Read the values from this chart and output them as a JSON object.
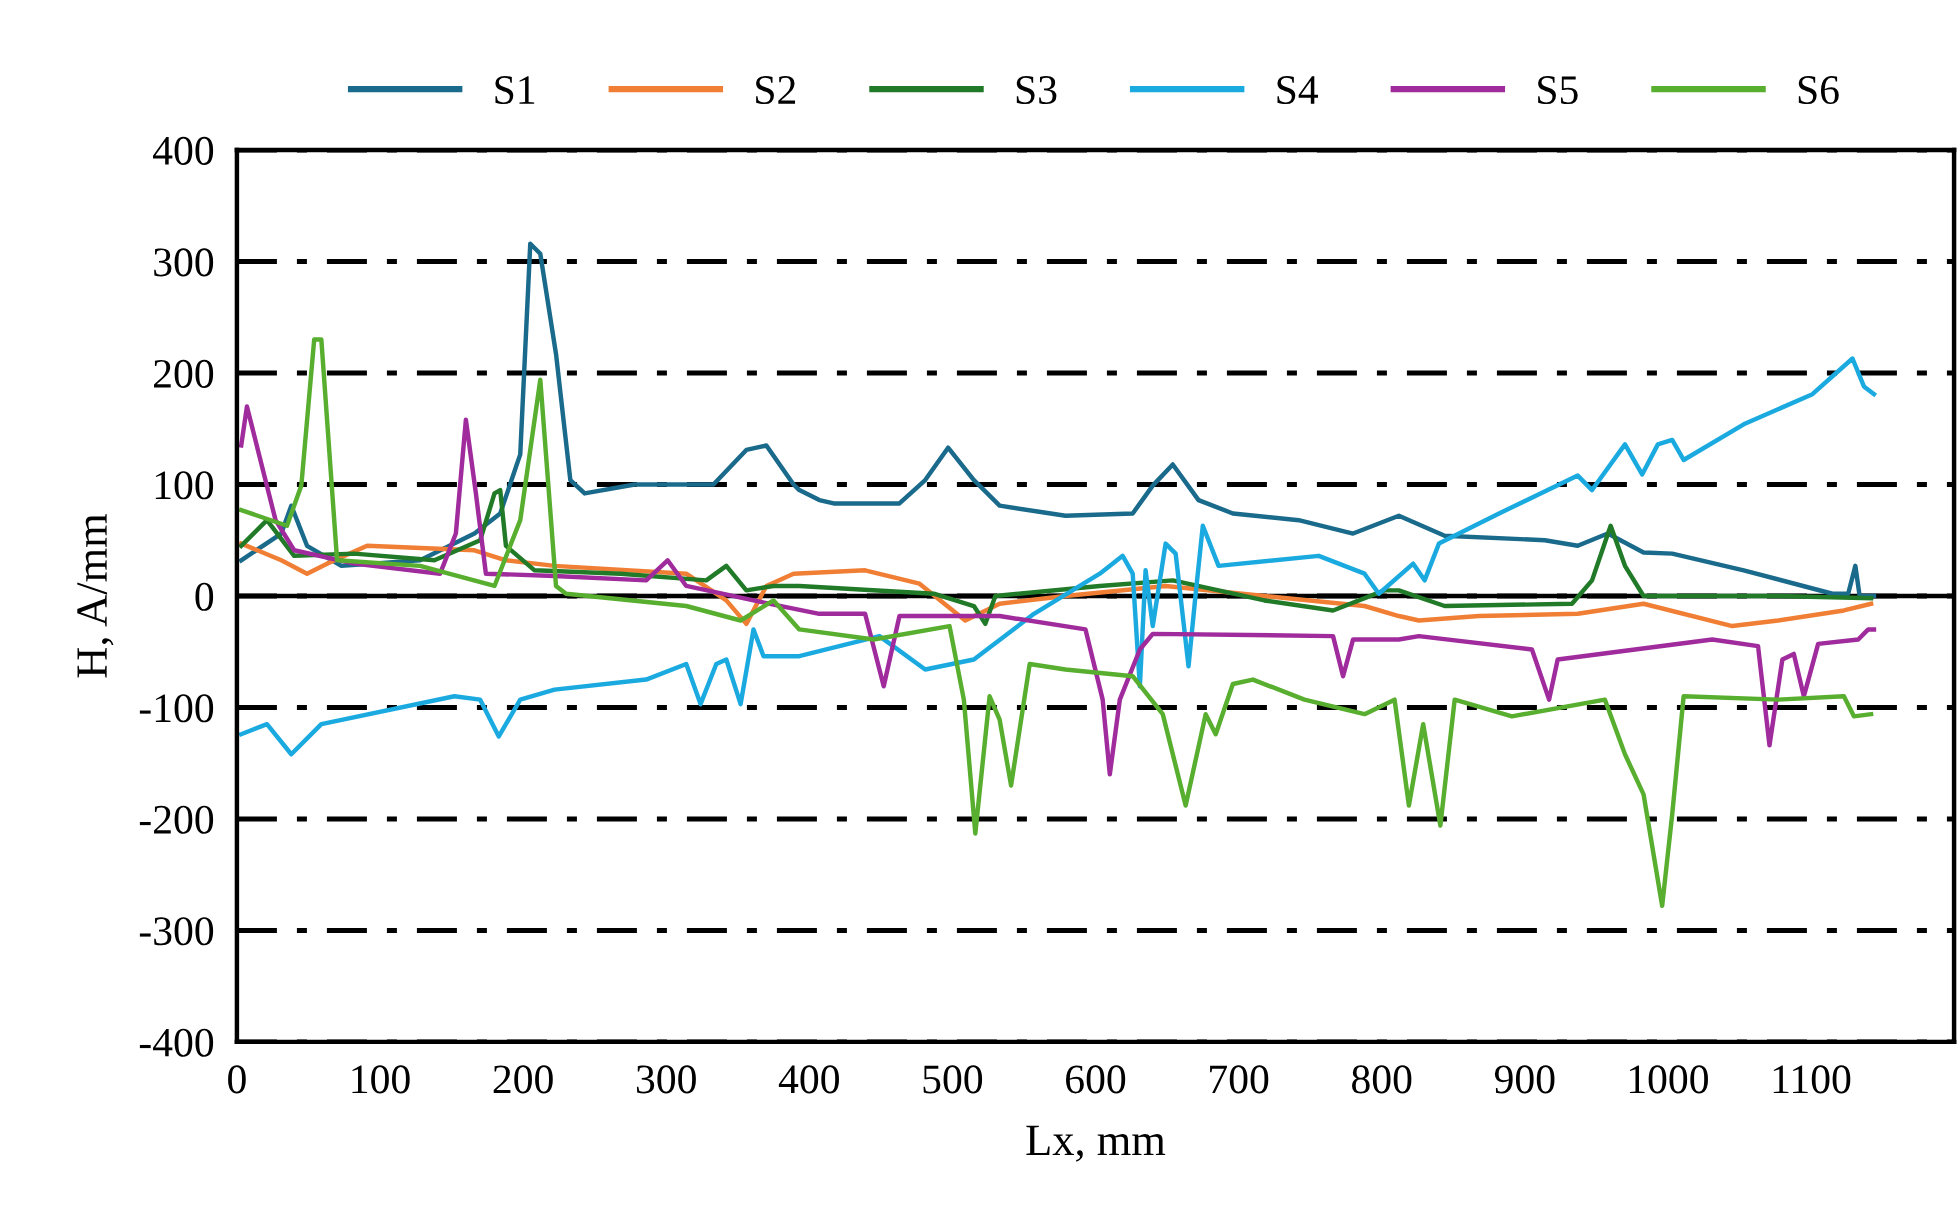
{
  "chart_data": {
    "type": "line",
    "xlabel": "Lx, mm",
    "ylabel": "H, A/mm",
    "xlim": [
      0,
      1200
    ],
    "xticks": [
      0,
      100,
      200,
      300,
      400,
      500,
      600,
      700,
      800,
      900,
      1000,
      1100
    ],
    "ylim": [
      -400,
      400
    ],
    "yticks": [
      -400,
      -300,
      -200,
      -100,
      0,
      100,
      200,
      300,
      400
    ],
    "grid": "y",
    "legend": "top",
    "marker": "none",
    "line_style": "solid",
    "ref_lines": [
      {
        "axis": "y",
        "value": 0,
        "color": "#000000"
      }
    ],
    "series": [
      {
        "name": "S1",
        "color": "#1a6a8c",
        "x": [
          3,
          31,
          38,
          49,
          73,
          128,
          166,
          184,
          198,
          205,
          212,
          223,
          233,
          243,
          278,
          333,
          356,
          370,
          389,
          393,
          407,
          417,
          463,
          481,
          497,
          515,
          533,
          579,
          626,
          640,
          654,
          672,
          696,
          742,
          780,
          812,
          844,
          914,
          937,
          958,
          983,
          1003,
          1053,
          1115,
          1126,
          1131,
          1134,
          1144
        ],
        "values": [
          32,
          56,
          81,
          45,
          27,
          32,
          56,
          74,
          127,
          316,
          307,
          217,
          104,
          92,
          100,
          100,
          131,
          135,
          100,
          95,
          86,
          83,
          83,
          104,
          133,
          104,
          81,
          72,
          74,
          99,
          118,
          86,
          74,
          68,
          56,
          72,
          54,
          50,
          45,
          56,
          39,
          38,
          23,
          2,
          2,
          27,
          0,
          0
        ]
      },
      {
        "name": "S2",
        "color": "#f07f35",
        "x": [
          3,
          31,
          49,
          63,
          91,
          166,
          188,
          222,
          314,
          342,
          356,
          370,
          389,
          439,
          477,
          509,
          533,
          579,
          649,
          718,
          788,
          812,
          826,
          868,
          937,
          983,
          1045,
          1077,
          1123,
          1142
        ],
        "values": [
          47,
          32,
          20,
          29,
          45,
          41,
          32,
          27,
          20,
          -4,
          -25,
          9,
          20,
          23,
          11,
          -22,
          -7,
          0,
          9,
          0,
          -9,
          -18,
          -22,
          -18,
          -16,
          -7,
          -27,
          -22,
          -13,
          -7
        ]
      },
      {
        "name": "S3",
        "color": "#217a28",
        "x": [
          3,
          21,
          40,
          82,
          138,
          170,
          180,
          184,
          188,
          208,
          268,
          328,
          342,
          356,
          375,
          393,
          487,
          515,
          523,
          530,
          603,
          654,
          718,
          766,
          802,
          812,
          844,
          933,
          947,
          960,
          970,
          983,
          1077,
          1142
        ],
        "values": [
          45,
          68,
          36,
          38,
          32,
          50,
          92,
          95,
          45,
          23,
          20,
          14,
          27,
          5,
          9,
          9,
          2,
          -9,
          -25,
          0,
          9,
          14,
          -4,
          -13,
          5,
          5,
          -9,
          -7,
          14,
          63,
          27,
          0,
          0,
          -2
        ]
      },
      {
        "name": "S4",
        "color": "#1aaae0",
        "x": [
          3,
          21,
          38,
          59,
          152,
          170,
          183,
          198,
          222,
          286,
          314,
          324,
          335,
          342,
          352,
          361,
          368,
          393,
          449,
          481,
          515,
          557,
          603,
          619,
          626,
          631,
          635,
          640,
          649,
          656,
          665,
          670,
          675,
          686,
          756,
          788,
          798,
          822,
          830,
          840,
          882,
          937,
          947,
          970,
          982,
          993,
          1003,
          1011,
          1053,
          1101,
          1129,
          1137,
          1144
        ],
        "values": [
          -124,
          -115,
          -142,
          -115,
          -90,
          -93,
          -126,
          -93,
          -84,
          -75,
          -61,
          -97,
          -61,
          -57,
          -97,
          -30,
          -54,
          -54,
          -36,
          -66,
          -57,
          -16,
          20,
          36,
          20,
          -81,
          23,
          -27,
          47,
          38,
          -63,
          2,
          63,
          27,
          36,
          20,
          2,
          29,
          14,
          47,
          74,
          108,
          95,
          136,
          109,
          136,
          140,
          122,
          154,
          181,
          213,
          188,
          181
        ]
      },
      {
        "name": "S5",
        "color": "#a02b9c",
        "x": [
          3,
          7,
          27,
          40,
          82,
          142,
          153,
          160,
          167,
          174,
          222,
          286,
          301,
          314,
          361,
          407,
          439,
          452,
          463,
          533,
          593,
          605,
          610,
          617,
          631,
          640,
          766,
          773,
          780,
          812,
          826,
          905,
          917,
          923,
          1031,
          1063,
          1071,
          1080,
          1088,
          1095,
          1105,
          1133,
          1140,
          1144
        ],
        "values": [
          135,
          170,
          68,
          41,
          29,
          20,
          56,
          158,
          92,
          20,
          18,
          14,
          32,
          9,
          -4,
          -16,
          -16,
          -81,
          -18,
          -18,
          -30,
          -93,
          -160,
          -93,
          -48,
          -34,
          -36,
          -72,
          -39,
          -39,
          -36,
          -48,
          -93,
          -57,
          -39,
          -45,
          -134,
          -57,
          -52,
          -90,
          -43,
          -39,
          -30,
          -30
        ]
      },
      {
        "name": "S6",
        "color": "#58ae2e",
        "x": [
          3,
          35,
          45,
          54,
          59,
          70,
          128,
          180,
          198,
          212,
          223,
          230,
          314,
          352,
          375,
          393,
          445,
          498,
          508,
          516,
          526,
          533,
          541,
          554,
          579,
          626,
          647,
          663,
          677,
          684,
          696,
          710,
          746,
          788,
          809,
          819,
          829,
          841,
          851,
          891,
          956,
          970,
          983,
          996,
          1003,
          1011,
          1077,
          1123,
          1130,
          1142
        ],
        "values": [
          77,
          63,
          99,
          230,
          230,
          32,
          27,
          9,
          68,
          194,
          9,
          2,
          -9,
          -22,
          -4,
          -30,
          -39,
          -27,
          -93,
          -213,
          -90,
          -111,
          -170,
          -61,
          -66,
          -72,
          -106,
          -188,
          -106,
          -124,
          -79,
          -75,
          -93,
          -106,
          -93,
          -188,
          -115,
          -206,
          -93,
          -108,
          -93,
          -142,
          -178,
          -278,
          -196,
          -90,
          -93,
          -90,
          -108,
          -106
        ]
      }
    ]
  }
}
